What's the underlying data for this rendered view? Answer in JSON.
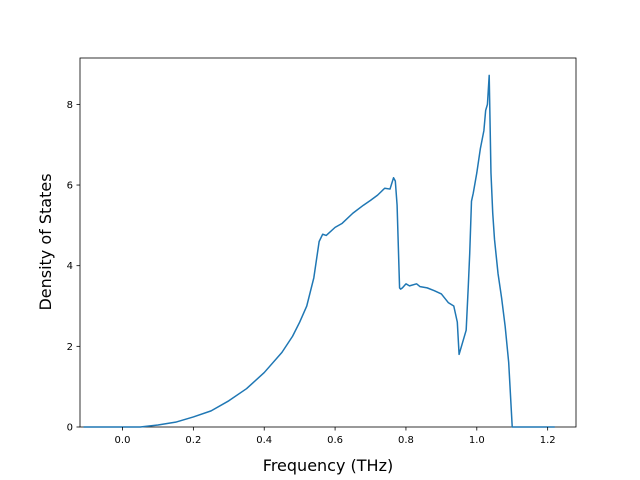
{
  "chart_data": {
    "type": "line",
    "xlabel": "Frequency (THz)",
    "ylabel": "Density of States",
    "xlim": [
      -0.12,
      1.28
    ],
    "ylim": [
      0,
      9.15
    ],
    "xticks": [
      0.0,
      0.2,
      0.4,
      0.6,
      0.8,
      1.0,
      1.2
    ],
    "xtick_labels": [
      "0.0",
      "0.2",
      "0.4",
      "0.6",
      "0.8",
      "1.0",
      "1.2"
    ],
    "yticks": [
      0,
      2,
      4,
      6,
      8
    ],
    "ytick_labels": [
      "0",
      "2",
      "4",
      "6",
      "8"
    ],
    "grid": false,
    "line_color": "#1f77b4",
    "series": [
      {
        "x": [
          -0.11,
          -0.05,
          0.0,
          0.05,
          0.1,
          0.15,
          0.2,
          0.25,
          0.3,
          0.35,
          0.4,
          0.45,
          0.48,
          0.5,
          0.52,
          0.54,
          0.555,
          0.565,
          0.575,
          0.6,
          0.62,
          0.65,
          0.68,
          0.7,
          0.72,
          0.74,
          0.755,
          0.765,
          0.77,
          0.775,
          0.782,
          0.785,
          0.79,
          0.8,
          0.81,
          0.83,
          0.84,
          0.86,
          0.88,
          0.9,
          0.92,
          0.935,
          0.945,
          0.95,
          0.96,
          0.97,
          0.976,
          0.98,
          0.985,
          0.99,
          1.0,
          1.01,
          1.02,
          1.025,
          1.03,
          1.035,
          1.04,
          1.045,
          1.05,
          1.06,
          1.07,
          1.08,
          1.09,
          1.1,
          1.11,
          1.13,
          1.2,
          1.22
        ],
        "y": [
          0.0,
          0.0,
          0.0,
          0.0,
          0.05,
          0.12,
          0.25,
          0.4,
          0.65,
          0.95,
          1.35,
          1.85,
          2.25,
          2.6,
          3.0,
          3.7,
          4.6,
          4.78,
          4.75,
          4.95,
          5.05,
          5.3,
          5.5,
          5.62,
          5.75,
          5.92,
          5.9,
          6.18,
          6.1,
          5.5,
          3.45,
          3.42,
          3.45,
          3.55,
          3.5,
          3.55,
          3.48,
          3.45,
          3.38,
          3.3,
          3.08,
          3.0,
          2.6,
          1.8,
          2.1,
          2.4,
          3.5,
          4.3,
          5.6,
          5.8,
          6.3,
          6.9,
          7.35,
          7.85,
          8.0,
          8.72,
          6.3,
          5.3,
          4.65,
          3.8,
          3.2,
          2.5,
          1.6,
          0.0,
          0.0,
          0.0,
          0.0,
          0.0
        ]
      }
    ]
  }
}
